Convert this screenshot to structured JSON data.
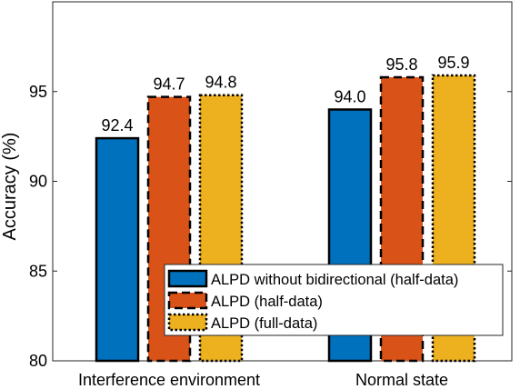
{
  "chart_data": {
    "type": "bar",
    "title": "",
    "xlabel": "",
    "ylabel": "Accuracy (%)",
    "ylim": [
      80,
      100
    ],
    "yticks": [
      80,
      85,
      90,
      95
    ],
    "grid": false,
    "legend_position": "bottom-right",
    "categories": [
      "Interference environment",
      "Normal state"
    ],
    "series": [
      {
        "name": "ALPD without bidirectional (half-data)",
        "values": [
          92.4,
          94.0
        ],
        "value_labels": [
          "92.4",
          "94.0"
        ],
        "color": "#0072BD",
        "border": "solid"
      },
      {
        "name": "ALPD (half-data)",
        "values": [
          94.7,
          95.8
        ],
        "value_labels": [
          "94.7",
          "95.8"
        ],
        "color": "#D95319",
        "border": "dashed"
      },
      {
        "name": "ALPD (full-data)",
        "values": [
          94.8,
          95.9
        ],
        "value_labels": [
          "94.8",
          "95.9"
        ],
        "color": "#EDB120",
        "border": "dotted"
      }
    ]
  }
}
